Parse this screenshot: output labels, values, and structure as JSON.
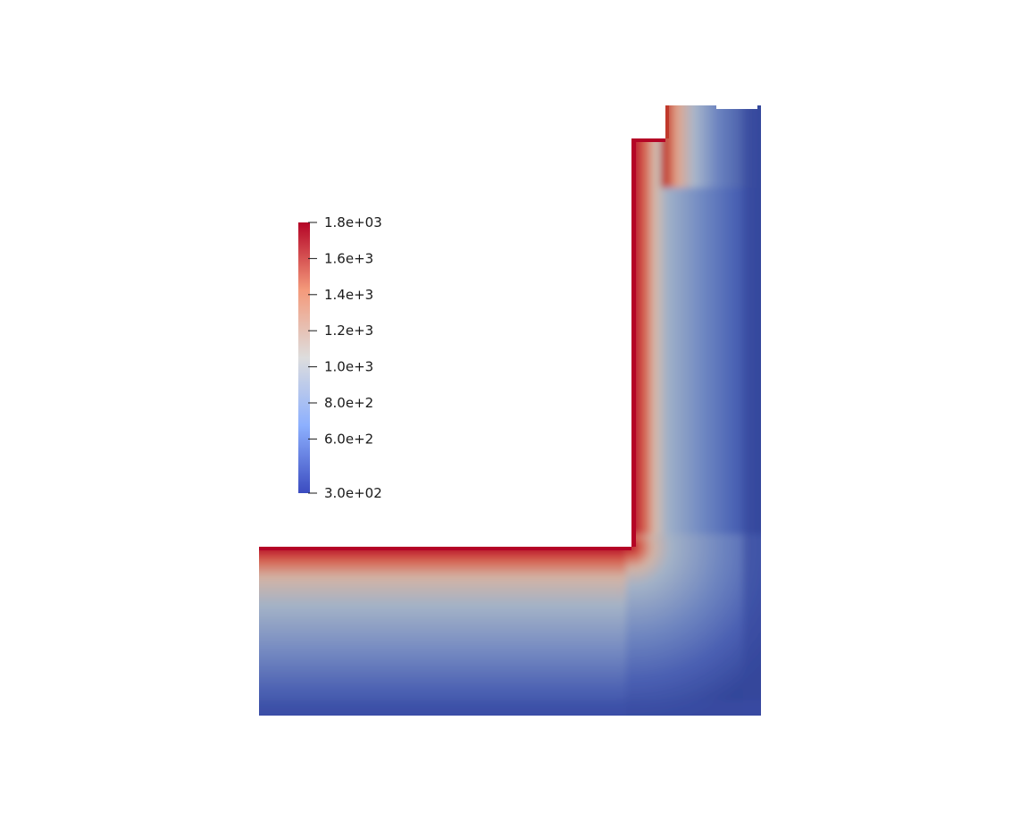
{
  "chart_data": {
    "type": "heatmap",
    "title": "",
    "colormap": "cool-to-warm",
    "colors": [
      "#3b4cc0",
      "#8db0fe",
      "#dddddd",
      "#f49a7b",
      "#b40426"
    ],
    "range": [
      300,
      1800
    ],
    "colorbar": {
      "placement": "left",
      "ticks": [
        {
          "value": 1800,
          "label": "1.8e+03"
        },
        {
          "value": 1600,
          "label": "1.6e+3"
        },
        {
          "value": 1400,
          "label": "1.4e+3"
        },
        {
          "value": 1200,
          "label": "1.2e+3"
        },
        {
          "value": 1000,
          "label": "1.0e+3"
        },
        {
          "value": 800,
          "label": "8.0e+2"
        },
        {
          "value": 600,
          "label": "6.0e+2"
        },
        {
          "value": 300,
          "label": "3.0e+02"
        }
      ]
    }
  }
}
